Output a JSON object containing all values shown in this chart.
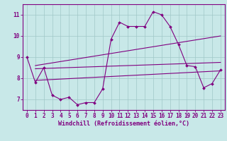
{
  "xlabel": "Windchill (Refroidissement éolien,°C)",
  "background_color": "#c8e8e8",
  "grid_color": "#a0c8c8",
  "line_color": "#800080",
  "spine_color": "#800080",
  "xlim": [
    -0.5,
    23.5
  ],
  "ylim": [
    6.5,
    11.5
  ],
  "yticks": [
    7,
    8,
    9,
    10,
    11
  ],
  "xticks": [
    0,
    1,
    2,
    3,
    4,
    5,
    6,
    7,
    8,
    9,
    10,
    11,
    12,
    13,
    14,
    15,
    16,
    17,
    18,
    19,
    20,
    21,
    22,
    23
  ],
  "curve_x": [
    0,
    1,
    2,
    3,
    4,
    5,
    6,
    7,
    8,
    9,
    10,
    11,
    12,
    13,
    14,
    15,
    16,
    17,
    18,
    19,
    20,
    21,
    22,
    23
  ],
  "curve_y": [
    9.0,
    7.8,
    8.5,
    7.2,
    7.0,
    7.1,
    6.75,
    6.85,
    6.85,
    7.5,
    9.85,
    10.65,
    10.45,
    10.45,
    10.45,
    11.15,
    11.0,
    10.45,
    9.6,
    8.6,
    8.55,
    7.55,
    7.75,
    8.4
  ],
  "trend1_x": [
    1.0,
    23.0
  ],
  "trend1_y": [
    8.6,
    10.0
  ],
  "trend2_x": [
    1.0,
    23.0
  ],
  "trend2_y": [
    8.45,
    8.75
  ],
  "trend3_x": [
    1.0,
    23.0
  ],
  "trend3_y": [
    7.9,
    8.35
  ],
  "tick_fontsize": 5.5,
  "xlabel_fontsize": 6.0
}
